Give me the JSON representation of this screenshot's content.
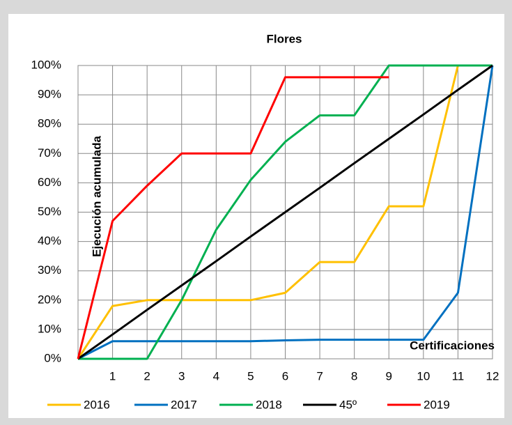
{
  "chart_data": {
    "type": "line",
    "title": "Flores",
    "y_label": "Ejecución acumulada",
    "x_label": "Certificaciones",
    "x": [
      0,
      1,
      2,
      3,
      4,
      5,
      6,
      7,
      8,
      9,
      10,
      11,
      12
    ],
    "xlim": [
      0,
      12
    ],
    "xticks": [
      1,
      2,
      3,
      4,
      5,
      6,
      7,
      8,
      9,
      10,
      11,
      12
    ],
    "ylim": [
      0,
      100
    ],
    "yticks": [
      {
        "value": 0,
        "label": "0%"
      },
      {
        "value": 10,
        "label": "10%"
      },
      {
        "value": 20,
        "label": "20%"
      },
      {
        "value": 30,
        "label": "30%"
      },
      {
        "value": 40,
        "label": "40%"
      },
      {
        "value": 50,
        "label": "50%"
      },
      {
        "value": 60,
        "label": "60%"
      },
      {
        "value": 70,
        "label": "70%"
      },
      {
        "value": 80,
        "label": "80%"
      },
      {
        "value": 90,
        "label": "90%"
      },
      {
        "value": 100,
        "label": "100%"
      }
    ],
    "grid": true,
    "legend": "bottom",
    "series": [
      {
        "name": "2016",
        "color": "#ffc000",
        "values": [
          0,
          18,
          20,
          20,
          20,
          20,
          22.5,
          33,
          33,
          52,
          52,
          100,
          100
        ]
      },
      {
        "name": "2017",
        "color": "#0070c0",
        "values": [
          0,
          6,
          6,
          6,
          6,
          6,
          6.3,
          6.5,
          6.5,
          6.5,
          6.5,
          22.5,
          100
        ]
      },
      {
        "name": "2018",
        "color": "#00b050",
        "values": [
          0,
          0,
          0,
          20,
          44,
          61,
          74,
          83,
          83,
          100,
          100,
          100,
          100
        ]
      },
      {
        "name": "45º",
        "color": "#000000",
        "values": [
          0,
          8.3,
          16.7,
          25,
          33.3,
          41.7,
          50,
          58.3,
          66.7,
          75,
          83.3,
          91.7,
          100
        ]
      },
      {
        "name": "2019",
        "color": "#ff0000",
        "values": [
          0,
          47,
          59,
          70,
          70,
          70,
          96,
          96,
          96,
          96,
          null,
          null,
          null
        ]
      }
    ]
  }
}
